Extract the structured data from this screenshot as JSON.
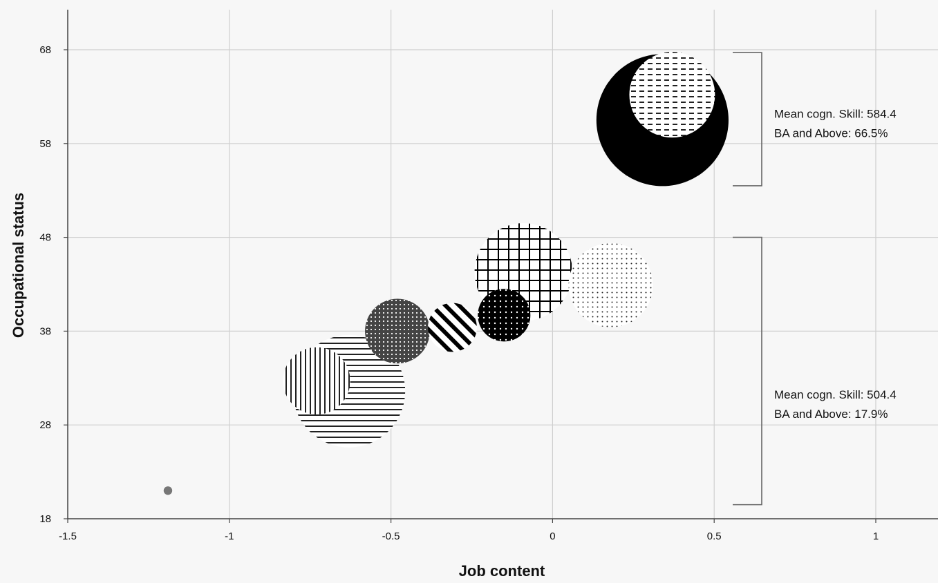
{
  "chart_data": {
    "type": "scatter",
    "subtype": "bubble",
    "xlabel": "Job content",
    "ylabel": "Occupational status",
    "xlim": [
      -1.5,
      1.2
    ],
    "ylim": [
      18,
      70
    ],
    "x_ticks": [
      -1.5,
      -1,
      -0.5,
      0,
      0.5,
      1
    ],
    "x_tick_labels": [
      "-1.5",
      "-1",
      "-0.5",
      "0",
      "0.5",
      "1"
    ],
    "y_ticks": [
      18,
      28,
      38,
      48,
      58,
      68
    ],
    "y_tick_labels": [
      "18",
      "28",
      "38",
      "48",
      "58",
      "68"
    ],
    "grid": true,
    "bubbles": [
      {
        "x": -1.19,
        "y": 21.0,
        "size": 0.7,
        "fill": "gray-solid"
      },
      {
        "x": -0.63,
        "y": 31.6,
        "size": 9.2,
        "fill": "horizontal-lines"
      },
      {
        "x": -0.73,
        "y": 32.7,
        "size": 5.5,
        "fill": "vertical-lines"
      },
      {
        "x": -0.48,
        "y": 38.0,
        "size": 5.3,
        "fill": "dotted-dark"
      },
      {
        "x": -0.31,
        "y": 38.4,
        "size": 4.0,
        "fill": "diagonal-lines"
      },
      {
        "x": -0.09,
        "y": 44.3,
        "size": 8.0,
        "fill": "grid-lines"
      },
      {
        "x": 0.18,
        "y": 42.9,
        "size": 6.9,
        "fill": "light-dots"
      },
      {
        "x": -0.15,
        "y": 39.7,
        "size": 4.3,
        "fill": "dotted-black"
      },
      {
        "x": 0.34,
        "y": 60.5,
        "size": 10.8,
        "fill": "black-solid"
      },
      {
        "x": 0.37,
        "y": 63.2,
        "size": 7.0,
        "fill": "dashes"
      }
    ],
    "brackets": [
      {
        "y_range": [
          53.5,
          67.7
        ],
        "label_lines": [
          "Mean cogn. Skill: 584.4",
          "BA and Above: 66.5%"
        ]
      },
      {
        "y_range": [
          19.5,
          48.0
        ],
        "label_lines": [
          "Mean cogn. Skill: 504.4",
          "BA and Above: 17.9%"
        ]
      }
    ]
  }
}
